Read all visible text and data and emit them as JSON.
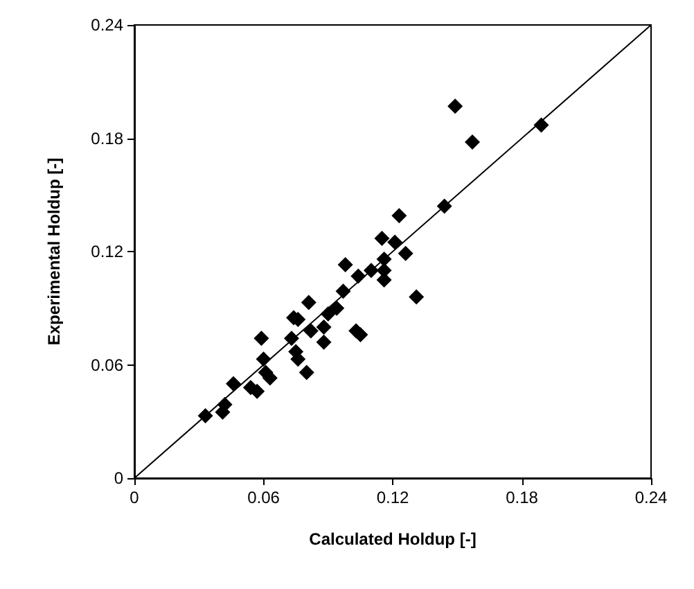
{
  "chart_data": {
    "type": "scatter",
    "xlabel": "Calculated Holdup [-]",
    "ylabel": "Experimental Holdup [-]",
    "xlim": [
      0,
      0.24
    ],
    "ylim": [
      0,
      0.24
    ],
    "xticks": [
      0,
      0.06,
      0.12,
      0.18,
      0.24
    ],
    "yticks": [
      0,
      0.06,
      0.12,
      0.18,
      0.24
    ],
    "grid": false,
    "marker": "diamond",
    "series": [
      {
        "color": "#000000",
        "x": [
          0.033,
          0.041,
          0.042,
          0.046,
          0.054,
          0.057,
          0.06,
          0.059,
          0.063,
          0.061,
          0.075,
          0.076,
          0.08,
          0.076,
          0.081,
          0.074,
          0.088,
          0.097,
          0.149,
          0.189,
          0.157,
          0.144,
          0.123,
          0.115,
          0.121,
          0.126,
          0.116,
          0.116,
          0.116,
          0.11,
          0.104,
          0.098,
          0.131,
          0.094,
          0.09,
          0.103,
          0.105,
          0.088,
          0.082,
          0.073
        ],
        "values": [
          0.033,
          0.035,
          0.039,
          0.05,
          0.048,
          0.046,
          0.063,
          0.074,
          0.053,
          0.056,
          0.067,
          0.063,
          0.056,
          0.084,
          0.093,
          0.085,
          0.072,
          0.099,
          0.197,
          0.187,
          0.178,
          0.144,
          0.139,
          0.127,
          0.125,
          0.119,
          0.116,
          0.11,
          0.105,
          0.11,
          0.107,
          0.113,
          0.096,
          0.09,
          0.087,
          0.078,
          0.076,
          0.08,
          0.078,
          0.074
        ]
      },
      {
        "type": "line",
        "color": "#000000",
        "marker": "none",
        "x": [
          0,
          0.24
        ],
        "values": [
          0,
          0.24
        ]
      }
    ]
  }
}
